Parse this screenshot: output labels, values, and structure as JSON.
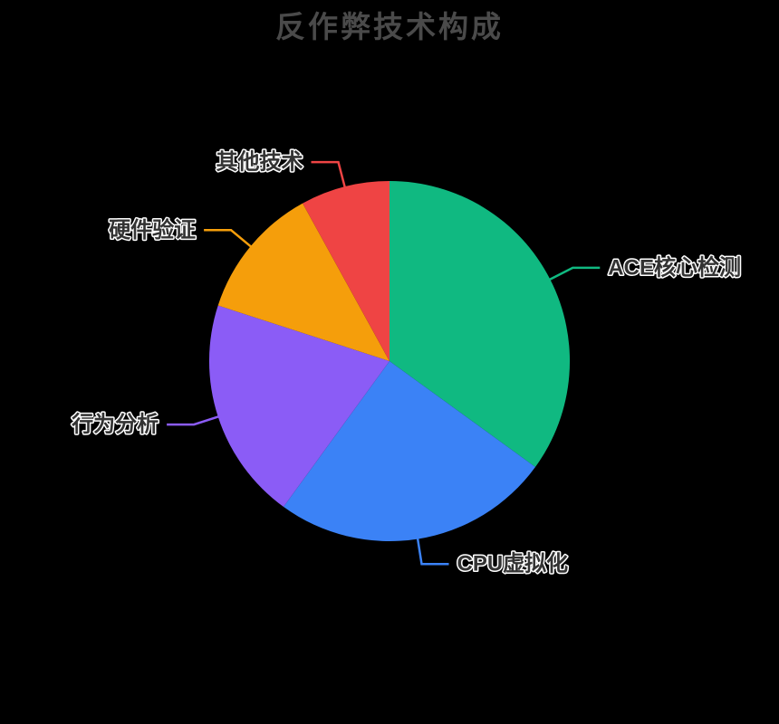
{
  "chart_data": {
    "type": "pie",
    "title": "反作弊技术构成",
    "series": [
      {
        "name": "ACE核心检测",
        "value": 35,
        "color": "#10b981"
      },
      {
        "name": "CPU虚拟化",
        "value": 25,
        "color": "#3b82f6"
      },
      {
        "name": "行为分析",
        "value": 20,
        "color": "#8b5cf6"
      },
      {
        "name": "硬件验证",
        "value": 12,
        "color": "#f59e0b"
      },
      {
        "name": "其他技术",
        "value": 8,
        "color": "#ef4444"
      }
    ],
    "unit": "percent",
    "start_angle": "top",
    "direction": "clockwise",
    "legend": "none",
    "label_style": "outside-with-leader-lines",
    "background_color": "#000000",
    "title_color": "#4a4a4a",
    "label_text_color": "#333333",
    "label_outline_color": "#ffffff"
  }
}
